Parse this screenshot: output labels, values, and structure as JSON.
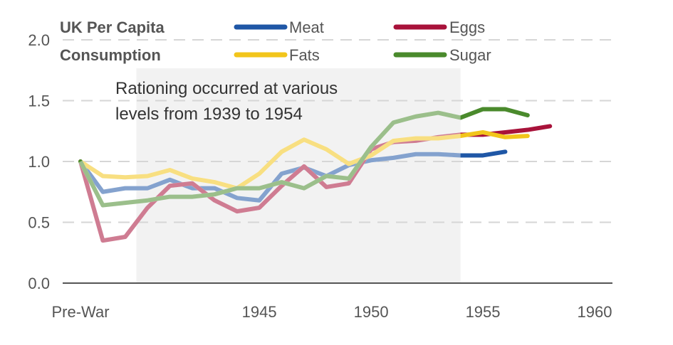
{
  "chart_data": {
    "type": "line",
    "title": "UK Per Capita Consumption",
    "title_lines": [
      "UK Per Capita",
      "Consumption"
    ],
    "annotation_lines": [
      "Rationing occurred at various",
      "levels from 1939 to 1954"
    ],
    "shaded_range": [
      1939.5,
      1954
    ],
    "x_tick_values": [
      1937,
      1945,
      1950,
      1955,
      1960
    ],
    "x_tick_labels": [
      "Pre-War",
      "1945",
      "1950",
      "1955",
      "1960"
    ],
    "y_ticks": [
      0.0,
      0.5,
      1.0,
      1.5,
      2.0
    ],
    "y_tick_labels": [
      "0.0",
      "0.5",
      "1.0",
      "1.5",
      "2.0"
    ],
    "xlim": [
      1937,
      1960
    ],
    "ylim": [
      0,
      2.0
    ],
    "grid": true,
    "x": [
      1937,
      1938,
      1939,
      1940,
      1941,
      1942,
      1943,
      1944,
      1945,
      1946,
      1947,
      1948,
      1949,
      1950,
      1951,
      1952,
      1953,
      1954,
      1955,
      1956,
      1957,
      1958,
      1959,
      1960
    ],
    "series": [
      {
        "name": "Meat",
        "color": "#1f57a6",
        "values": [
          1.0,
          0.75,
          0.78,
          0.78,
          0.85,
          0.78,
          0.78,
          0.7,
          0.68,
          0.9,
          0.95,
          0.88,
          0.97,
          1.01,
          1.03,
          1.06,
          1.06,
          1.05,
          1.05,
          1.08,
          null,
          null,
          null,
          null
        ]
      },
      {
        "name": "Eggs",
        "color": "#a8123a",
        "values": [
          1.0,
          0.35,
          0.38,
          0.62,
          0.8,
          0.82,
          0.68,
          0.59,
          0.62,
          0.8,
          0.96,
          0.79,
          0.82,
          1.1,
          1.16,
          1.17,
          1.2,
          1.22,
          1.22,
          1.24,
          1.26,
          1.29,
          null,
          null
        ]
      },
      {
        "name": "Fats",
        "color": "#f2c51b",
        "values": [
          1.0,
          0.88,
          0.87,
          0.88,
          0.93,
          0.86,
          0.83,
          0.78,
          0.9,
          1.08,
          1.18,
          1.1,
          0.98,
          1.05,
          1.17,
          1.19,
          1.19,
          1.21,
          1.24,
          1.2,
          1.21,
          null,
          null,
          null
        ]
      },
      {
        "name": "Sugar",
        "color": "#4a8a2c",
        "values": [
          1.0,
          0.64,
          0.66,
          0.68,
          0.71,
          0.71,
          0.73,
          0.78,
          0.78,
          0.83,
          0.78,
          0.88,
          0.86,
          1.12,
          1.32,
          1.37,
          1.4,
          1.36,
          1.43,
          1.43,
          1.38,
          null,
          null,
          null
        ]
      }
    ]
  }
}
